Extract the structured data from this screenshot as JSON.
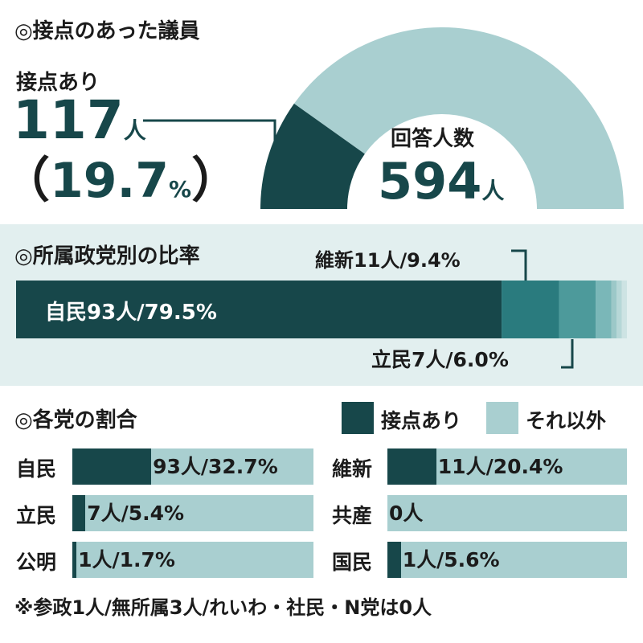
{
  "colors": {
    "contact": "#17474a",
    "other": "#a9cfd0",
    "band": "#e2efef"
  },
  "section1": {
    "title": "◎接点のあった議員",
    "contact_label": "接点あり",
    "contact_count": "117",
    "contact_unit": "人",
    "contact_pct_open": "（",
    "contact_pct": "19.7",
    "contact_pct_unit": "%",
    "contact_pct_close": "）",
    "respondents_label": "回答人数",
    "respondents_count": "594",
    "respondents_unit": "人"
  },
  "section2": {
    "title": "◎所属政党別の比率",
    "label_ldp": "自民93人/79.5%",
    "label_ishin": "維新11人/9.4%",
    "label_cdp": "立民7人/6.0%"
  },
  "section3": {
    "title": "◎各党の割合",
    "legend_contact": "接点あり",
    "legend_other": "それ以外",
    "note": "※参政1人/無所属3人/れいわ・社民・N党は0人"
  },
  "chart_data": [
    {
      "type": "pie",
      "variant": "half-donut",
      "title": "接点のあった議員",
      "slices": [
        {
          "label": "接点あり",
          "value": 117,
          "percent": 19.7
        },
        {
          "label": "それ以外",
          "value": 477
        }
      ],
      "total": 594,
      "total_label": "回答人数"
    },
    {
      "type": "bar",
      "variant": "100%-stacked-horizontal",
      "title": "所属政党別の比率",
      "series": [
        {
          "name": "自民",
          "value": 93,
          "percent": 79.5
        },
        {
          "name": "維新",
          "value": 11,
          "percent": 9.4
        },
        {
          "name": "立民",
          "value": 7,
          "percent": 6.0
        },
        {
          "value": 3,
          "percent": 2.6
        },
        {
          "value": 1,
          "percent": 0.85
        },
        {
          "value": 1,
          "percent": 0.85
        },
        {
          "value": 1,
          "percent": 0.85
        }
      ]
    },
    {
      "type": "bar",
      "variant": "100%-stacked-horizontal",
      "title": "各党の割合",
      "legend": [
        "接点あり",
        "それ以外"
      ],
      "legend_position": "top-right",
      "parties": [
        {
          "name": "自民",
          "contact": 93,
          "percent": 32.7,
          "label": "93人/32.7%"
        },
        {
          "name": "維新",
          "contact": 11,
          "percent": 20.4,
          "label": "11人/20.4%"
        },
        {
          "name": "立民",
          "contact": 7,
          "percent": 5.4,
          "label": "7人/5.4%"
        },
        {
          "name": "共産",
          "contact": 0,
          "percent": 0,
          "label": "0人"
        },
        {
          "name": "公明",
          "contact": 1,
          "percent": 1.7,
          "label": "1人/1.7%"
        },
        {
          "name": "国民",
          "contact": 1,
          "percent": 5.6,
          "label": "1人/5.6%"
        }
      ]
    }
  ]
}
